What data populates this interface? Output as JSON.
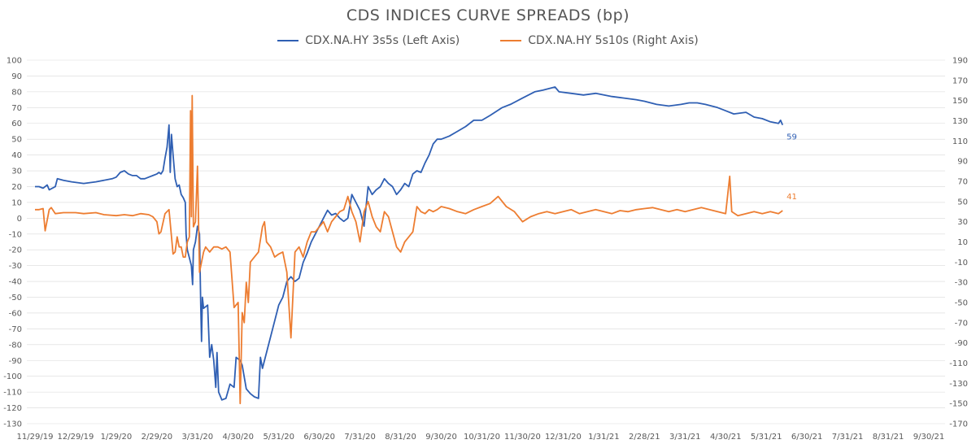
{
  "chart_data": {
    "type": "line",
    "title": "CDS INDICES CURVE SPREADS (bp)",
    "colors": {
      "left": "#2f5fb3",
      "right": "#ed7d31",
      "grid": "#d9d9d9",
      "tick": "#595959"
    },
    "left_axis": {
      "ylim": [
        -130,
        100
      ],
      "ticks": [
        100,
        90,
        80,
        70,
        60,
        50,
        40,
        30,
        20,
        10,
        0,
        -10,
        -20,
        -30,
        -40,
        -50,
        -60,
        -70,
        -80,
        -90,
        -100,
        -110,
        -120,
        -130
      ]
    },
    "right_axis": {
      "ylim": [
        -170,
        190
      ],
      "ticks": [
        190,
        170,
        150,
        130,
        110,
        90,
        70,
        50,
        30,
        10,
        -10,
        -30,
        -50,
        -70,
        -90,
        -110,
        -130,
        -150,
        -170
      ]
    },
    "x_ticks": [
      "11/29/19",
      "12/29/19",
      "1/29/20",
      "2/29/20",
      "3/31/20",
      "4/30/20",
      "5/31/20",
      "6/30/20",
      "7/31/20",
      "8/31/20",
      "9/30/20",
      "10/31/20",
      "11/30/20",
      "12/31/20",
      "1/31/21",
      "2/28/21",
      "3/31/21",
      "4/30/21",
      "5/31/21",
      "6/30/21",
      "7/31/21",
      "8/31/21",
      "9/30/21"
    ],
    "series": [
      {
        "name": "CDX.NA.HY 3s5s (Left Axis)",
        "axis": "left",
        "last_label": "59",
        "points": [
          [
            0,
            20
          ],
          [
            0.1,
            20
          ],
          [
            0.2,
            19
          ],
          [
            0.3,
            21
          ],
          [
            0.35,
            18
          ],
          [
            0.5,
            20
          ],
          [
            0.55,
            25
          ],
          [
            0.7,
            24
          ],
          [
            0.9,
            23
          ],
          [
            1.2,
            22
          ],
          [
            1.5,
            23
          ],
          [
            1.9,
            25
          ],
          [
            2.0,
            26
          ],
          [
            2.1,
            29
          ],
          [
            2.2,
            30
          ],
          [
            2.3,
            28
          ],
          [
            2.4,
            27
          ],
          [
            2.5,
            27
          ],
          [
            2.6,
            25
          ],
          [
            2.7,
            25
          ],
          [
            2.8,
            26
          ],
          [
            2.9,
            27
          ],
          [
            3.0,
            28
          ],
          [
            3.05,
            29
          ],
          [
            3.1,
            28
          ],
          [
            3.15,
            30
          ],
          [
            3.2,
            38
          ],
          [
            3.25,
            45
          ],
          [
            3.3,
            59
          ],
          [
            3.33,
            29
          ],
          [
            3.36,
            53
          ],
          [
            3.4,
            40
          ],
          [
            3.45,
            25
          ],
          [
            3.5,
            20
          ],
          [
            3.55,
            21
          ],
          [
            3.6,
            15
          ],
          [
            3.65,
            13
          ],
          [
            3.7,
            10
          ],
          [
            3.72,
            -10
          ],
          [
            3.75,
            -20
          ],
          [
            3.8,
            -25
          ],
          [
            3.85,
            -30
          ],
          [
            3.88,
            -42
          ],
          [
            3.9,
            -20
          ],
          [
            3.95,
            -15
          ],
          [
            4.0,
            -5
          ],
          [
            4.05,
            -10
          ],
          [
            4.08,
            -55
          ],
          [
            4.1,
            -78
          ],
          [
            4.12,
            -50
          ],
          [
            4.15,
            -57
          ],
          [
            4.2,
            -56
          ],
          [
            4.25,
            -55
          ],
          [
            4.3,
            -88
          ],
          [
            4.35,
            -80
          ],
          [
            4.4,
            -90
          ],
          [
            4.45,
            -107
          ],
          [
            4.48,
            -85
          ],
          [
            4.52,
            -110
          ],
          [
            4.6,
            -115
          ],
          [
            4.7,
            -114
          ],
          [
            4.8,
            -105
          ],
          [
            4.9,
            -107
          ],
          [
            4.95,
            -88
          ],
          [
            5.05,
            -90
          ],
          [
            5.1,
            -93
          ],
          [
            5.2,
            -108
          ],
          [
            5.3,
            -111
          ],
          [
            5.4,
            -113
          ],
          [
            5.5,
            -114
          ],
          [
            5.55,
            -88
          ],
          [
            5.6,
            -95
          ],
          [
            5.7,
            -85
          ],
          [
            5.8,
            -75
          ],
          [
            5.9,
            -65
          ],
          [
            6.0,
            -55
          ],
          [
            6.1,
            -50
          ],
          [
            6.2,
            -40
          ],
          [
            6.3,
            -37
          ],
          [
            6.4,
            -40
          ],
          [
            6.5,
            -38
          ],
          [
            6.6,
            -28
          ],
          [
            6.7,
            -22
          ],
          [
            6.8,
            -15
          ],
          [
            6.9,
            -10
          ],
          [
            7.0,
            -5
          ],
          [
            7.1,
            0
          ],
          [
            7.2,
            5
          ],
          [
            7.3,
            2
          ],
          [
            7.4,
            3
          ],
          [
            7.5,
            0
          ],
          [
            7.6,
            -2
          ],
          [
            7.7,
            0
          ],
          [
            7.8,
            15
          ],
          [
            7.9,
            10
          ],
          [
            8.0,
            5
          ],
          [
            8.1,
            -5
          ],
          [
            8.2,
            20
          ],
          [
            8.3,
            15
          ],
          [
            8.4,
            18
          ],
          [
            8.5,
            20
          ],
          [
            8.6,
            25
          ],
          [
            8.7,
            22
          ],
          [
            8.8,
            20
          ],
          [
            8.9,
            15
          ],
          [
            9.0,
            18
          ],
          [
            9.1,
            22
          ],
          [
            9.2,
            20
          ],
          [
            9.3,
            28
          ],
          [
            9.4,
            30
          ],
          [
            9.5,
            29
          ],
          [
            9.6,
            35
          ],
          [
            9.7,
            40
          ],
          [
            9.8,
            47
          ],
          [
            9.9,
            50
          ],
          [
            10.0,
            50
          ],
          [
            10.2,
            52
          ],
          [
            10.4,
            55
          ],
          [
            10.6,
            58
          ],
          [
            10.8,
            62
          ],
          [
            11.0,
            62
          ],
          [
            11.2,
            65
          ],
          [
            11.5,
            70
          ],
          [
            11.7,
            72
          ],
          [
            12.0,
            76
          ],
          [
            12.3,
            80
          ],
          [
            12.5,
            81
          ],
          [
            12.8,
            83
          ],
          [
            12.9,
            80
          ],
          [
            13.2,
            79
          ],
          [
            13.5,
            78
          ],
          [
            13.8,
            79
          ],
          [
            14.0,
            78
          ],
          [
            14.2,
            77
          ],
          [
            14.5,
            76
          ],
          [
            14.8,
            75
          ],
          [
            15.0,
            74
          ],
          [
            15.3,
            72
          ],
          [
            15.6,
            71
          ],
          [
            15.9,
            72
          ],
          [
            16.1,
            73
          ],
          [
            16.3,
            73
          ],
          [
            16.5,
            72
          ],
          [
            16.8,
            70
          ],
          [
            17.0,
            68
          ],
          [
            17.2,
            66
          ],
          [
            17.5,
            67
          ],
          [
            17.7,
            64
          ],
          [
            17.9,
            63
          ],
          [
            18.1,
            61
          ],
          [
            18.3,
            60
          ],
          [
            18.35,
            62
          ],
          [
            18.4,
            59
          ]
        ]
      },
      {
        "name": "CDX.NA.HY 5s10s (Right Axis)",
        "axis": "right",
        "last_label": "41",
        "points": [
          [
            0,
            42
          ],
          [
            0.1,
            42
          ],
          [
            0.2,
            43
          ],
          [
            0.25,
            21
          ],
          [
            0.35,
            42
          ],
          [
            0.4,
            44
          ],
          [
            0.5,
            38
          ],
          [
            0.7,
            39
          ],
          [
            1.0,
            39
          ],
          [
            1.2,
            38
          ],
          [
            1.5,
            39
          ],
          [
            1.7,
            37
          ],
          [
            2.0,
            36
          ],
          [
            2.2,
            37
          ],
          [
            2.4,
            36
          ],
          [
            2.6,
            38
          ],
          [
            2.8,
            37
          ],
          [
            2.9,
            35
          ],
          [
            3.0,
            30
          ],
          [
            3.05,
            18
          ],
          [
            3.1,
            20
          ],
          [
            3.2,
            38
          ],
          [
            3.3,
            42
          ],
          [
            3.35,
            20
          ],
          [
            3.4,
            -2
          ],
          [
            3.45,
            0
          ],
          [
            3.5,
            15
          ],
          [
            3.55,
            5
          ],
          [
            3.6,
            5
          ],
          [
            3.65,
            -5
          ],
          [
            3.7,
            -5
          ],
          [
            3.75,
            10
          ],
          [
            3.8,
            15
          ],
          [
            3.83,
            140
          ],
          [
            3.85,
            35
          ],
          [
            3.87,
            155
          ],
          [
            3.9,
            25
          ],
          [
            3.95,
            30
          ],
          [
            4.0,
            85
          ],
          [
            4.05,
            -20
          ],
          [
            4.1,
            -10
          ],
          [
            4.15,
            0
          ],
          [
            4.2,
            5
          ],
          [
            4.3,
            0
          ],
          [
            4.4,
            5
          ],
          [
            4.5,
            5
          ],
          [
            4.6,
            3
          ],
          [
            4.7,
            5
          ],
          [
            4.8,
            0
          ],
          [
            4.9,
            -55
          ],
          [
            5.0,
            -50
          ],
          [
            5.05,
            -150
          ],
          [
            5.1,
            -60
          ],
          [
            5.15,
            -70
          ],
          [
            5.2,
            -30
          ],
          [
            5.25,
            -50
          ],
          [
            5.3,
            -10
          ],
          [
            5.4,
            -5
          ],
          [
            5.5,
            0
          ],
          [
            5.6,
            25
          ],
          [
            5.65,
            30
          ],
          [
            5.7,
            10
          ],
          [
            5.8,
            5
          ],
          [
            5.9,
            -5
          ],
          [
            6.0,
            -2
          ],
          [
            6.1,
            0
          ],
          [
            6.2,
            -20
          ],
          [
            6.3,
            -85
          ],
          [
            6.4,
            0
          ],
          [
            6.5,
            5
          ],
          [
            6.6,
            -5
          ],
          [
            6.7,
            10
          ],
          [
            6.8,
            20
          ],
          [
            6.9,
            20
          ],
          [
            7.0,
            25
          ],
          [
            7.1,
            30
          ],
          [
            7.2,
            20
          ],
          [
            7.3,
            30
          ],
          [
            7.4,
            35
          ],
          [
            7.5,
            40
          ],
          [
            7.6,
            42
          ],
          [
            7.7,
            55
          ],
          [
            7.8,
            40
          ],
          [
            7.9,
            30
          ],
          [
            8.0,
            10
          ],
          [
            8.1,
            40
          ],
          [
            8.2,
            50
          ],
          [
            8.3,
            35
          ],
          [
            8.4,
            25
          ],
          [
            8.5,
            20
          ],
          [
            8.6,
            40
          ],
          [
            8.7,
            35
          ],
          [
            8.8,
            20
          ],
          [
            8.9,
            5
          ],
          [
            9.0,
            0
          ],
          [
            9.1,
            10
          ],
          [
            9.2,
            15
          ],
          [
            9.3,
            20
          ],
          [
            9.4,
            45
          ],
          [
            9.5,
            40
          ],
          [
            9.6,
            38
          ],
          [
            9.7,
            42
          ],
          [
            9.8,
            40
          ],
          [
            9.9,
            42
          ],
          [
            10.0,
            45
          ],
          [
            10.2,
            43
          ],
          [
            10.4,
            40
          ],
          [
            10.6,
            38
          ],
          [
            10.8,
            42
          ],
          [
            11.0,
            45
          ],
          [
            11.2,
            48
          ],
          [
            11.4,
            55
          ],
          [
            11.6,
            45
          ],
          [
            11.8,
            40
          ],
          [
            12.0,
            30
          ],
          [
            12.2,
            35
          ],
          [
            12.4,
            38
          ],
          [
            12.6,
            40
          ],
          [
            12.8,
            38
          ],
          [
            13.0,
            40
          ],
          [
            13.2,
            42
          ],
          [
            13.4,
            38
          ],
          [
            13.6,
            40
          ],
          [
            13.8,
            42
          ],
          [
            14.0,
            40
          ],
          [
            14.2,
            38
          ],
          [
            14.4,
            41
          ],
          [
            14.6,
            40
          ],
          [
            14.8,
            42
          ],
          [
            15.0,
            43
          ],
          [
            15.2,
            44
          ],
          [
            15.4,
            42
          ],
          [
            15.6,
            40
          ],
          [
            15.8,
            42
          ],
          [
            16.0,
            40
          ],
          [
            16.2,
            42
          ],
          [
            16.4,
            44
          ],
          [
            16.6,
            42
          ],
          [
            16.8,
            40
          ],
          [
            17.0,
            38
          ],
          [
            17.1,
            75
          ],
          [
            17.15,
            40
          ],
          [
            17.3,
            36
          ],
          [
            17.5,
            38
          ],
          [
            17.7,
            40
          ],
          [
            17.9,
            38
          ],
          [
            18.1,
            40
          ],
          [
            18.3,
            38
          ],
          [
            18.4,
            41
          ]
        ]
      }
    ]
  }
}
